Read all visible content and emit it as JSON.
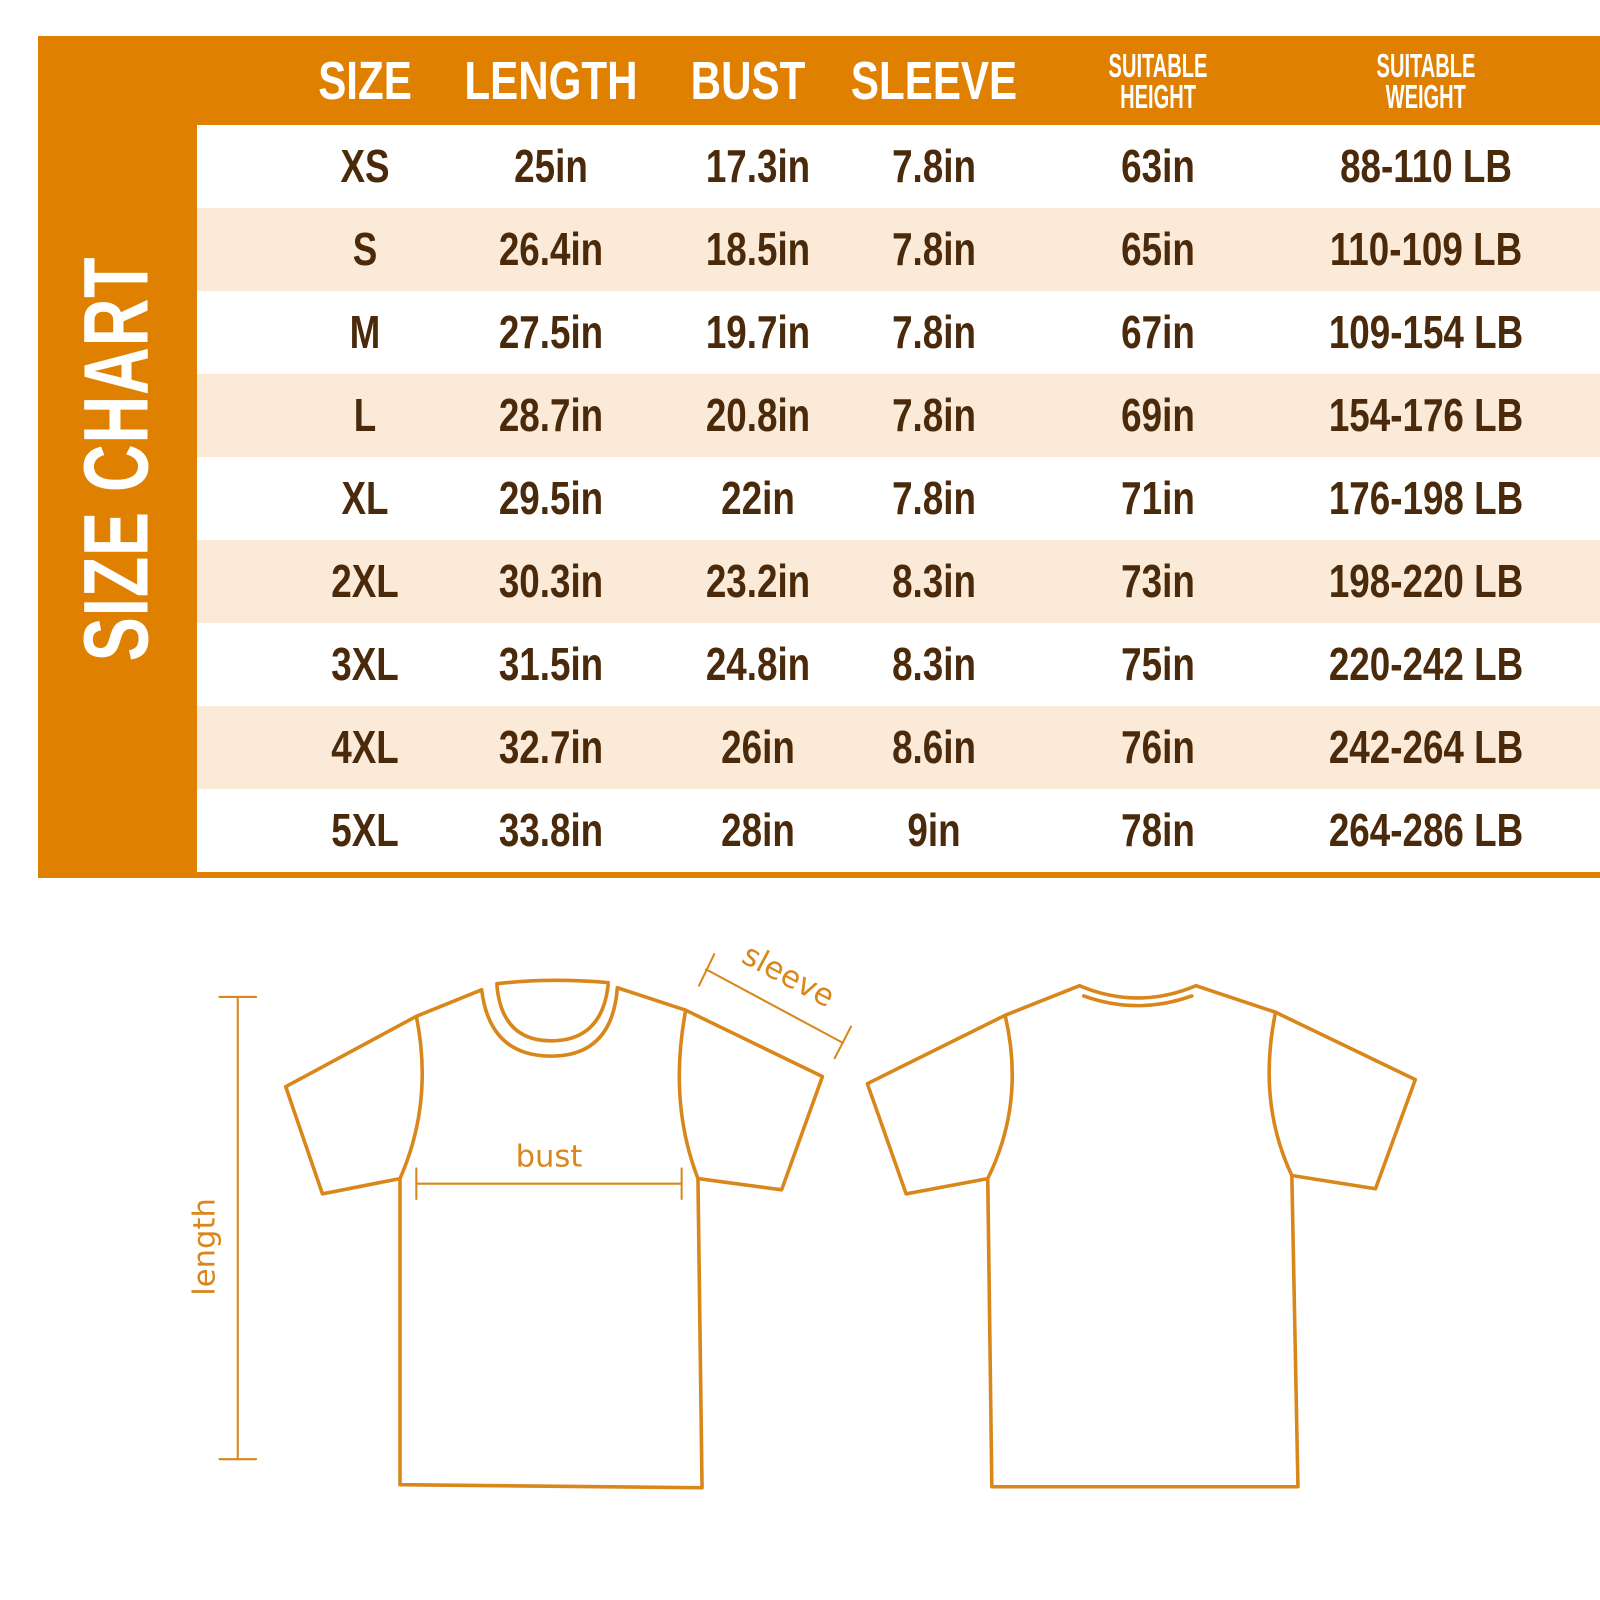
{
  "title": "SIZE CHART",
  "colors": {
    "accent": "#E08000",
    "text": "#4A2A0A",
    "stripe": "#FAEAD7",
    "outline": "#D9861A"
  },
  "headers": [
    "SIZE",
    "LENGTH",
    "BUST",
    "SLEEVE",
    "SUITABLE HEIGHT",
    "SUITABLE WEIGHT"
  ],
  "headers_split": {
    "height": [
      "SUITABLE",
      "HEIGHT"
    ],
    "weight": [
      "SUITABLE",
      "WEIGHT"
    ]
  },
  "rows": [
    [
      "XS",
      "25in",
      "17.3in",
      "7.8in",
      "63in",
      "88-110 LB"
    ],
    [
      "S",
      "26.4in",
      "18.5in",
      "7.8in",
      "65in",
      "110-109 LB"
    ],
    [
      "M",
      "27.5in",
      "19.7in",
      "7.8in",
      "67in",
      "109-154 LB"
    ],
    [
      "L",
      "28.7in",
      "20.8in",
      "7.8in",
      "69in",
      "154-176 LB"
    ],
    [
      "XL",
      "29.5in",
      "22in",
      "7.8in",
      "71in",
      "176-198 LB"
    ],
    [
      "2XL",
      "30.3in",
      "23.2in",
      "8.3in",
      "73in",
      "198-220 LB"
    ],
    [
      "3XL",
      "31.5in",
      "24.8in",
      "8.3in",
      "75in",
      "220-242 LB"
    ],
    [
      "4XL",
      "32.7in",
      "26in",
      "8.6in",
      "76in",
      "242-264 LB"
    ],
    [
      "5XL",
      "33.8in",
      "28in",
      "9in",
      "78in",
      "264-286 LB"
    ]
  ],
  "diagram": {
    "bust": "bust",
    "length": "length",
    "sleeve": "sleeve"
  }
}
